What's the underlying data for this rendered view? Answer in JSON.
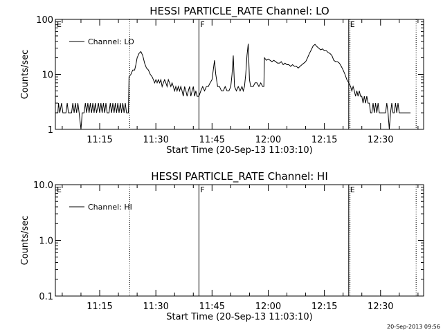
{
  "footer": {
    "timestamp": "20-Sep-2013 09:56"
  },
  "chart_data": [
    {
      "type": "line",
      "title": "HESSI PARTICLE_RATE Channel: LO",
      "xlabel": "Start Time (20-Sep-13 11:03:10)",
      "ylabel": "Counts/sec",
      "yscale": "log",
      "ylim": [
        1,
        100
      ],
      "xlim": [
        "11:03:10",
        "12:41:30"
      ],
      "x_ticks": [
        "11:15",
        "11:30",
        "11:45",
        "12:00",
        "12:15",
        "12:30"
      ],
      "y_ticks": [
        "1",
        "10",
        "100"
      ],
      "legend": {
        "label": "Channel: LO",
        "position": "top-left"
      },
      "markers": [
        {
          "label": "E",
          "x": "11:03:10",
          "style": "solid"
        },
        {
          "label": "",
          "x": "11:23:00",
          "style": "dotted"
        },
        {
          "label": "F",
          "x": "11:41:30",
          "style": "solid"
        },
        {
          "label": "E",
          "x": "12:21:30",
          "style": "solid"
        },
        {
          "label": "",
          "x": "12:21:50",
          "style": "dotted"
        },
        {
          "label": "",
          "x": "12:39:30",
          "style": "dotted"
        }
      ],
      "series": [
        {
          "name": "Channel: LO",
          "points": [
            [
              "11:03:10",
              2
            ],
            [
              "11:03:50",
              2
            ],
            [
              "11:04:00",
              3
            ],
            [
              "11:04:20",
              2
            ],
            [
              "11:04:50",
              3
            ],
            [
              "11:05:10",
              2
            ],
            [
              "11:06:00",
              2
            ],
            [
              "11:06:20",
              3
            ],
            [
              "11:06:40",
              2
            ],
            [
              "11:07:30",
              2
            ],
            [
              "11:07:50",
              3
            ],
            [
              "11:08:10",
              2
            ],
            [
              "11:08:30",
              3
            ],
            [
              "11:08:50",
              2
            ],
            [
              "11:09:10",
              3
            ],
            [
              "11:09:30",
              2
            ],
            [
              "11:10:00",
              1
            ],
            [
              "11:10:20",
              2
            ],
            [
              "11:10:50",
              2
            ],
            [
              "11:11:10",
              3
            ],
            [
              "11:11:30",
              2
            ],
            [
              "11:11:50",
              3
            ],
            [
              "11:12:10",
              2
            ],
            [
              "11:12:30",
              3
            ],
            [
              "11:12:50",
              2
            ],
            [
              "11:13:10",
              3
            ],
            [
              "11:13:30",
              2
            ],
            [
              "11:13:50",
              3
            ],
            [
              "11:14:10",
              2
            ],
            [
              "11:14:40",
              3
            ],
            [
              "11:15:00",
              2
            ],
            [
              "11:15:20",
              3
            ],
            [
              "11:15:40",
              2
            ],
            [
              "11:16:00",
              3
            ],
            [
              "11:16:20",
              2
            ],
            [
              "11:16:40",
              3
            ],
            [
              "11:17:00",
              2
            ],
            [
              "11:17:30",
              2
            ],
            [
              "11:17:50",
              3
            ],
            [
              "11:18:10",
              2
            ],
            [
              "11:18:30",
              3
            ],
            [
              "11:18:50",
              2
            ],
            [
              "11:19:10",
              3
            ],
            [
              "11:19:30",
              2
            ],
            [
              "11:19:50",
              3
            ],
            [
              "11:20:10",
              2
            ],
            [
              "11:20:30",
              3
            ],
            [
              "11:20:50",
              2
            ],
            [
              "11:21:10",
              3
            ],
            [
              "11:21:30",
              2
            ],
            [
              "11:21:50",
              3
            ],
            [
              "11:22:10",
              2
            ],
            [
              "11:22:40",
              2
            ],
            [
              "11:22:50",
              9
            ],
            [
              "11:23:20",
              10
            ],
            [
              "11:23:50",
              12
            ],
            [
              "11:24:20",
              12
            ],
            [
              "11:24:40",
              15
            ],
            [
              "11:25:00",
              20
            ],
            [
              "11:25:30",
              24
            ],
            [
              "11:26:00",
              26
            ],
            [
              "11:26:30",
              22
            ],
            [
              "11:27:00",
              16
            ],
            [
              "11:27:30",
              13
            ],
            [
              "11:28:00",
              12
            ],
            [
              "11:28:30",
              10
            ],
            [
              "11:29:00",
              9
            ],
            [
              "11:29:20",
              8
            ],
            [
              "11:29:40",
              7
            ],
            [
              "11:30:00",
              8
            ],
            [
              "11:30:20",
              7
            ],
            [
              "11:30:40",
              8
            ],
            [
              "11:31:00",
              7
            ],
            [
              "11:31:20",
              8
            ],
            [
              "11:31:40",
              6
            ],
            [
              "11:32:00",
              7
            ],
            [
              "11:32:20",
              8
            ],
            [
              "11:32:40",
              7
            ],
            [
              "11:33:00",
              6
            ],
            [
              "11:33:20",
              8
            ],
            [
              "11:33:40",
              7
            ],
            [
              "11:34:00",
              6
            ],
            [
              "11:34:20",
              7
            ],
            [
              "11:34:40",
              6
            ],
            [
              "11:35:00",
              5
            ],
            [
              "11:35:20",
              6
            ],
            [
              "11:35:40",
              5
            ],
            [
              "11:36:00",
              6
            ],
            [
              "11:36:20",
              5
            ],
            [
              "11:36:40",
              6
            ],
            [
              "11:37:00",
              5
            ],
            [
              "11:37:20",
              4
            ],
            [
              "11:37:40",
              6
            ],
            [
              "11:38:00",
              5
            ],
            [
              "11:38:20",
              4
            ],
            [
              "11:38:40",
              5
            ],
            [
              "11:39:00",
              6
            ],
            [
              "11:39:20",
              4
            ],
            [
              "11:39:40",
              5
            ],
            [
              "11:40:00",
              6
            ],
            [
              "11:40:20",
              4
            ],
            [
              "11:40:40",
              5
            ],
            [
              "11:41:00",
              4
            ],
            [
              "11:41:30",
              4
            ],
            [
              "11:42:00",
              5
            ],
            [
              "11:42:30",
              6
            ],
            [
              "11:43:00",
              5
            ],
            [
              "11:43:30",
              6
            ],
            [
              "11:44:00",
              6
            ],
            [
              "11:44:30",
              7
            ],
            [
              "11:45:00",
              8
            ],
            [
              "11:45:20",
              12
            ],
            [
              "11:45:40",
              18
            ],
            [
              "11:46:00",
              10
            ],
            [
              "11:46:30",
              6
            ],
            [
              "11:47:00",
              6
            ],
            [
              "11:47:30",
              5
            ],
            [
              "11:48:00",
              5
            ],
            [
              "11:48:30",
              6
            ],
            [
              "11:49:00",
              5
            ],
            [
              "11:49:30",
              5
            ],
            [
              "11:50:00",
              6
            ],
            [
              "11:50:20",
              10
            ],
            [
              "11:50:40",
              22
            ],
            [
              "11:51:00",
              6
            ],
            [
              "11:51:30",
              5
            ],
            [
              "11:52:00",
              6
            ],
            [
              "11:52:30",
              5
            ],
            [
              "11:53:00",
              6
            ],
            [
              "11:53:20",
              5
            ],
            [
              "11:53:40",
              6
            ],
            [
              "11:54:00",
              10
            ],
            [
              "11:54:20",
              22
            ],
            [
              "11:54:40",
              36
            ],
            [
              "11:55:00",
              8
            ],
            [
              "11:55:20",
              6
            ],
            [
              "11:55:40",
              6
            ],
            [
              "11:56:00",
              6
            ],
            [
              "11:56:30",
              7
            ],
            [
              "11:57:00",
              7
            ],
            [
              "11:57:30",
              6
            ],
            [
              "11:58:00",
              7
            ],
            [
              "11:58:30",
              6
            ],
            [
              "11:58:50",
              6
            ],
            [
              "11:59:00",
              20
            ],
            [
              "11:59:30",
              18
            ],
            [
              "12:00:00",
              19
            ],
            [
              "12:00:30",
              18
            ],
            [
              "12:01:00",
              17
            ],
            [
              "12:01:30",
              18
            ],
            [
              "12:02:00",
              17
            ],
            [
              "12:02:30",
              16
            ],
            [
              "12:03:00",
              16
            ],
            [
              "12:03:30",
              17
            ],
            [
              "12:04:00",
              15
            ],
            [
              "12:04:30",
              16
            ],
            [
              "12:05:00",
              15
            ],
            [
              "12:05:30",
              15
            ],
            [
              "12:06:00",
              14
            ],
            [
              "12:06:30",
              15
            ],
            [
              "12:07:00",
              14
            ],
            [
              "12:07:30",
              14
            ],
            [
              "12:08:00",
              13
            ],
            [
              "12:08:30",
              14
            ],
            [
              "12:09:00",
              15
            ],
            [
              "12:09:30",
              16
            ],
            [
              "12:10:00",
              17
            ],
            [
              "12:10:30",
              20
            ],
            [
              "12:11:00",
              24
            ],
            [
              "12:11:30",
              28
            ],
            [
              "12:12:00",
              33
            ],
            [
              "12:12:30",
              35
            ],
            [
              "12:13:00",
              32
            ],
            [
              "12:13:30",
              30
            ],
            [
              "12:14:00",
              28
            ],
            [
              "12:14:30",
              29
            ],
            [
              "12:15:00",
              27
            ],
            [
              "12:15:30",
              27
            ],
            [
              "12:16:00",
              25
            ],
            [
              "12:16:30",
              24
            ],
            [
              "12:17:00",
              22
            ],
            [
              "12:17:30",
              18
            ],
            [
              "12:18:00",
              17
            ],
            [
              "12:18:30",
              17
            ],
            [
              "12:19:00",
              16
            ],
            [
              "12:19:30",
              14
            ],
            [
              "12:20:00",
              12
            ],
            [
              "12:20:30",
              10
            ],
            [
              "12:21:00",
              8
            ],
            [
              "12:21:30",
              7
            ],
            [
              "12:22:00",
              6
            ],
            [
              "12:22:20",
              5
            ],
            [
              "12:22:40",
              6
            ],
            [
              "12:23:00",
              5
            ],
            [
              "12:23:20",
              4
            ],
            [
              "12:23:40",
              5
            ],
            [
              "12:24:00",
              4
            ],
            [
              "12:24:20",
              5
            ],
            [
              "12:24:40",
              4
            ],
            [
              "12:25:00",
              4
            ],
            [
              "12:25:20",
              3
            ],
            [
              "12:25:40",
              4
            ],
            [
              "12:26:00",
              3
            ],
            [
              "12:26:20",
              4
            ],
            [
              "12:26:40",
              3
            ],
            [
              "12:27:00",
              3
            ],
            [
              "12:27:20",
              2
            ],
            [
              "12:27:40",
              2
            ],
            [
              "12:28:00",
              3
            ],
            [
              "12:28:20",
              2
            ],
            [
              "12:28:40",
              3
            ],
            [
              "12:29:00",
              2
            ],
            [
              "12:29:20",
              3
            ],
            [
              "12:29:40",
              2
            ],
            [
              "12:30:00",
              2
            ],
            [
              "12:30:20",
              2
            ],
            [
              "12:30:40",
              2
            ],
            [
              "12:31:00",
              2
            ],
            [
              "12:31:20",
              2
            ],
            [
              "12:31:40",
              3
            ],
            [
              "12:32:00",
              2
            ],
            [
              "12:32:20",
              1
            ],
            [
              "12:32:40",
              2
            ],
            [
              "12:33:00",
              3
            ],
            [
              "12:33:20",
              2
            ],
            [
              "12:33:40",
              2
            ],
            [
              "12:34:00",
              3
            ],
            [
              "12:34:20",
              2
            ],
            [
              "12:34:40",
              3
            ],
            [
              "12:35:00",
              2
            ],
            [
              "12:35:30",
              2
            ],
            [
              "12:36:00",
              2
            ],
            [
              "12:36:30",
              2
            ],
            [
              "12:37:00",
              2
            ],
            [
              "12:37:30",
              2
            ],
            [
              "12:38:00",
              2
            ]
          ]
        }
      ]
    },
    {
      "type": "line",
      "title": "HESSI PARTICLE_RATE Channel: HI",
      "xlabel": "Start Time (20-Sep-13 11:03:10)",
      "ylabel": "Counts/sec",
      "yscale": "log",
      "ylim": [
        0.1,
        10
      ],
      "xlim": [
        "11:03:10",
        "12:41:30"
      ],
      "x_ticks": [
        "11:15",
        "11:30",
        "11:45",
        "12:00",
        "12:15",
        "12:30"
      ],
      "y_ticks": [
        "0.1",
        "1.0",
        "10.0"
      ],
      "legend": {
        "label": "Channel: HI",
        "position": "top-left"
      },
      "markers": [
        {
          "label": "E",
          "x": "11:03:10",
          "style": "solid"
        },
        {
          "label": "",
          "x": "11:23:00",
          "style": "dotted"
        },
        {
          "label": "F",
          "x": "11:41:30",
          "style": "solid"
        },
        {
          "label": "E",
          "x": "12:21:30",
          "style": "solid"
        },
        {
          "label": "",
          "x": "12:21:50",
          "style": "dotted"
        },
        {
          "label": "",
          "x": "12:39:30",
          "style": "dotted"
        }
      ],
      "series": [
        {
          "name": "Channel: HI",
          "points": []
        }
      ]
    }
  ]
}
